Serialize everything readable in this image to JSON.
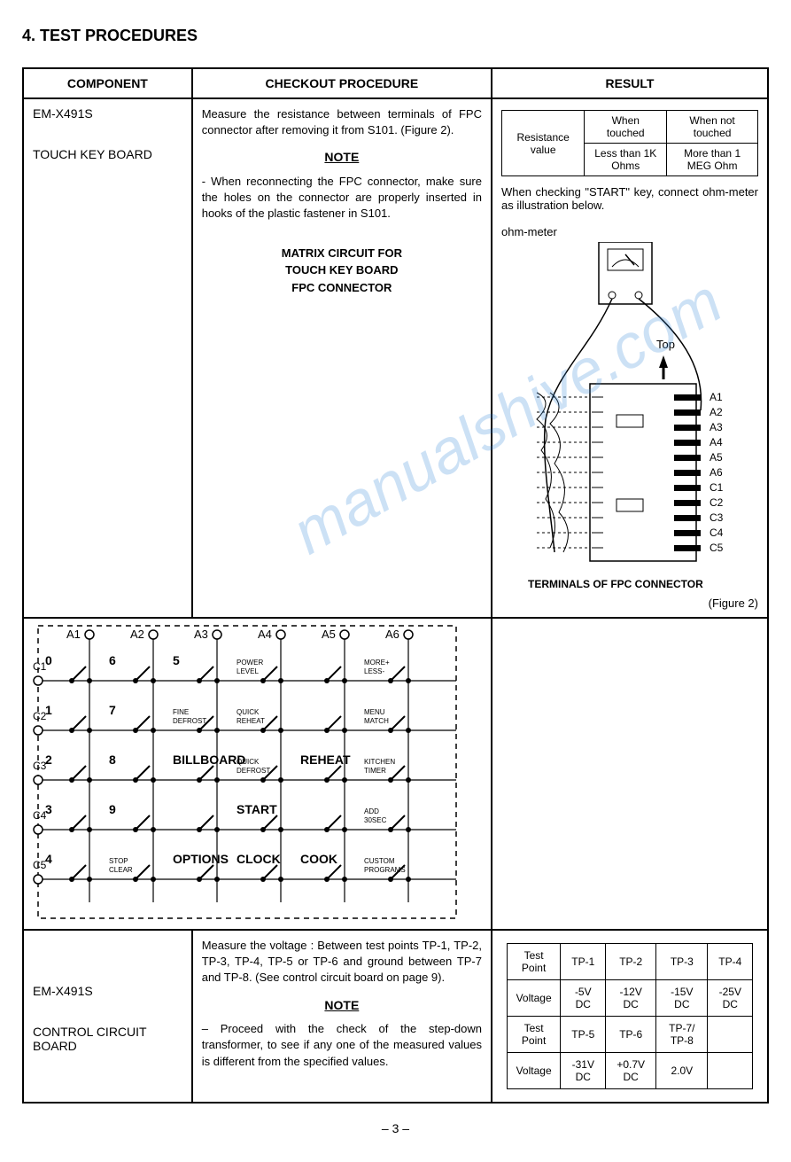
{
  "section_number": "4.",
  "section_title": "TEST PROCEDURES",
  "headers": {
    "component": "COMPONENT",
    "procedure": "CHECKOUT PROCEDURE",
    "result": "RESULT"
  },
  "row1": {
    "model": "EM-X491S",
    "partname": "TOUCH KEY BOARD",
    "proc_p1": "Measure the resistance between terminals of FPC connector after removing it from S101. (Figure 2).",
    "note_label": "NOTE",
    "proc_note": "- When reconnecting the FPC connector, make sure the holes on the connector are properly inserted in hooks of the plastic fastener in S101.",
    "matrix_l1": "MATRIX CIRCUIT FOR",
    "matrix_l2": "TOUCH KEY BOARD",
    "matrix_l3": "FPC CONNECTOR",
    "matrix": {
      "cols": [
        "A1",
        "A2",
        "A3",
        "A4",
        "A5",
        "A6"
      ],
      "rows": [
        "C1",
        "C2",
        "C3",
        "C4",
        "C5"
      ],
      "keys": [
        [
          "0",
          "6",
          "5",
          "POWER\nLEVEL",
          "",
          "MORE+\nLESS-"
        ],
        [
          "1",
          "7",
          "FINE\nDEFROST",
          "QUICK\nREHEAT",
          "",
          "MENU\nMATCH"
        ],
        [
          "2",
          "8",
          "BILLBOARD",
          "QUICK\nDEFROST",
          "REHEAT",
          "KITCHEN\nTIMER"
        ],
        [
          "3",
          "9",
          "",
          "START",
          "",
          "ADD\n30SEC"
        ],
        [
          "4",
          "STOP\nCLEAR",
          "OPTIONS",
          "CLOCK",
          "COOK",
          "CUSTOM\nPROGRAMS"
        ]
      ]
    },
    "res_table": {
      "r1c1": "Resistance value",
      "r1c2": "When touched",
      "r1c3": "When not touched",
      "r2c2": "Less than 1K Ohms",
      "r2c3": "More than 1 MEG Ohm"
    },
    "res_note": "When checking \"START\" key, connect ohm-meter as illustration below.",
    "ohm_label": "ohm-meter",
    "top_label": "Top",
    "fpc_terminals": [
      "A1",
      "A2",
      "A3",
      "A4",
      "A5",
      "A6",
      "C1",
      "C2",
      "C3",
      "C4",
      "C5"
    ],
    "fpc_title": "TERMINALS OF FPC CONNECTOR",
    "fig_label": "(Figure 2)"
  },
  "row2": {
    "model": "EM-X491S",
    "partname": "CONTROL CIRCUIT BOARD",
    "proc_p1": "Measure the voltage : Between test points TP-1, TP-2, TP-3, TP-4, TP-5 or TP-6 and ground between TP-7 and TP-8. (See control circuit board  on page 9).",
    "note_label": "NOTE",
    "proc_note": "– Proceed with the check of the step-down transformer, to see if any one of the measured values is different from the specified values.",
    "tp_table": {
      "label_tp": "Test Point",
      "label_v": "Voltage",
      "r1": [
        "TP-1",
        "TP-2",
        "TP-3",
        "TP-4"
      ],
      "v1": [
        "-5V DC",
        "-12V DC",
        "-15V DC",
        "-25V DC"
      ],
      "r2": [
        "TP-5",
        "TP-6",
        "TP-7/ TP-8",
        ""
      ],
      "v2": [
        "-31V DC",
        "+0.7V DC",
        "2.0V",
        ""
      ]
    }
  },
  "page_num": "–  3  –",
  "watermark": "manualshive.com",
  "colors": {
    "line": "#000000",
    "watermark": "#3a8adb"
  }
}
